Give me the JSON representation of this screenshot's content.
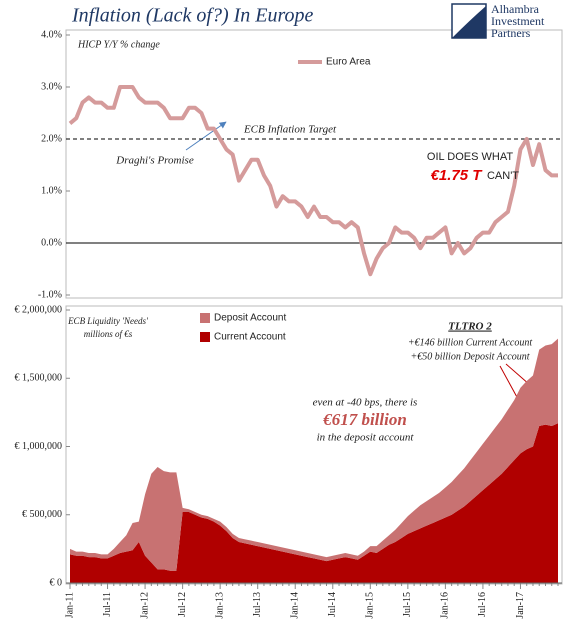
{
  "logo_text": [
    "Alhambra",
    "Investment",
    "Partners"
  ],
  "chart_data": [
    {
      "type": "line",
      "title": "Inflation (Lack of?) In Europe",
      "subtitle": "HICP Y/Y % change",
      "ylim": [
        -1,
        4
      ],
      "yticks": [
        {
          "value": -1,
          "label": "-1.0%"
        },
        {
          "value": 0,
          "label": "0.0%"
        },
        {
          "value": 1,
          "label": "1.0%"
        },
        {
          "value": 2,
          "label": "2.0%"
        },
        {
          "value": 3,
          "label": "3.0%"
        },
        {
          "value": 4,
          "label": "4.0%"
        }
      ],
      "grid": false,
      "legend": "top",
      "reference_lines": [
        {
          "value": 2,
          "label": "ECB Inflation Target"
        }
      ],
      "annotations": [
        "Draghi's Promise",
        "OIL DOES WHAT",
        "€1.75 T",
        "CAN'T"
      ],
      "series": [
        {
          "name": "Euro Area",
          "color": "#d59b9b",
          "values": [
            2.3,
            2.4,
            2.7,
            2.8,
            2.7,
            2.7,
            2.6,
            2.6,
            3.0,
            3.0,
            3.0,
            2.8,
            2.7,
            2.7,
            2.7,
            2.6,
            2.4,
            2.4,
            2.4,
            2.6,
            2.6,
            2.5,
            2.2,
            2.2,
            2.0,
            1.8,
            1.7,
            1.2,
            1.4,
            1.6,
            1.6,
            1.3,
            1.1,
            0.7,
            0.9,
            0.8,
            0.8,
            0.7,
            0.5,
            0.7,
            0.5,
            0.5,
            0.4,
            0.4,
            0.3,
            0.4,
            0.3,
            -0.2,
            -0.6,
            -0.3,
            -0.1,
            0.0,
            0.3,
            0.2,
            0.2,
            0.1,
            -0.1,
            0.1,
            0.1,
            0.2,
            0.3,
            -0.2,
            0.0,
            -0.2,
            -0.1,
            0.1,
            0.2,
            0.2,
            0.4,
            0.5,
            0.6,
            1.1,
            1.8,
            2.0,
            1.5,
            1.9,
            1.4,
            1.3,
            1.3
          ]
        }
      ]
    },
    {
      "type": "stacked_area",
      "categories": [
        "Jan-11",
        null,
        null,
        null,
        null,
        null,
        "Jul-11",
        null,
        null,
        null,
        null,
        null,
        "Jan-12",
        null,
        null,
        null,
        null,
        null,
        "Jul-12",
        null,
        null,
        null,
        null,
        null,
        "Jan-13",
        null,
        null,
        null,
        null,
        null,
        "Jul-13",
        null,
        null,
        null,
        null,
        null,
        "Jan-14",
        null,
        null,
        null,
        null,
        null,
        "Jul-14",
        null,
        null,
        null,
        null,
        null,
        "Jan-15",
        null,
        null,
        null,
        null,
        null,
        "Jul-15",
        null,
        null,
        null,
        null,
        null,
        "Jan-16",
        null,
        null,
        null,
        null,
        null,
        "Jul-16",
        null,
        null,
        null,
        null,
        null,
        "Jan-17",
        null,
        null,
        null,
        null,
        null,
        null
      ],
      "ylim": [
        0,
        2000000
      ],
      "yticks": [
        {
          "value": 0,
          "label": "€ 0"
        },
        {
          "value": 500000,
          "label": "€ 500,000"
        },
        {
          "value": 1000000,
          "label": "€ 1,000,000"
        },
        {
          "value": 1500000,
          "label": "€ 1,500,000"
        },
        {
          "value": 2000000,
          "label": "€ 2,000,000"
        }
      ],
      "grid": false,
      "legend": "top-left",
      "annotations": [
        "ECB Liquidity 'Needs'",
        "millions of €s",
        "TLTRO 2",
        "+€146 billion Current Account",
        "+€50 billion Deposit Account",
        "even at -40 bps, there is",
        "€617 billion",
        "in the deposit account"
      ],
      "series": [
        {
          "name": "Current Account",
          "color": "#b00000",
          "values": [
            210000,
            200000,
            200000,
            190000,
            190000,
            180000,
            180000,
            200000,
            220000,
            230000,
            240000,
            300000,
            200000,
            150000,
            100000,
            100000,
            90000,
            90000,
            520000,
            520000,
            500000,
            480000,
            470000,
            450000,
            420000,
            380000,
            330000,
            300000,
            290000,
            280000,
            270000,
            260000,
            250000,
            240000,
            230000,
            220000,
            210000,
            200000,
            190000,
            180000,
            170000,
            160000,
            170000,
            180000,
            190000,
            180000,
            170000,
            200000,
            230000,
            220000,
            250000,
            280000,
            300000,
            330000,
            360000,
            380000,
            400000,
            420000,
            440000,
            460000,
            480000,
            500000,
            530000,
            560000,
            600000,
            640000,
            680000,
            720000,
            760000,
            800000,
            850000,
            900000,
            950000,
            980000,
            1000000,
            1150000,
            1160000,
            1150000,
            1170000
          ]
        },
        {
          "name": "Deposit Account",
          "color": "#c87272",
          "values": [
            40000,
            30000,
            30000,
            30000,
            30000,
            30000,
            30000,
            50000,
            80000,
            120000,
            200000,
            150000,
            450000,
            650000,
            750000,
            720000,
            720000,
            720000,
            30000,
            20000,
            20000,
            20000,
            20000,
            20000,
            30000,
            30000,
            30000,
            30000,
            30000,
            30000,
            30000,
            30000,
            30000,
            30000,
            30000,
            30000,
            30000,
            30000,
            30000,
            30000,
            30000,
            30000,
            30000,
            30000,
            30000,
            30000,
            30000,
            30000,
            40000,
            50000,
            60000,
            70000,
            90000,
            110000,
            130000,
            150000,
            170000,
            180000,
            190000,
            200000,
            220000,
            240000,
            260000,
            280000,
            300000,
            320000,
            340000,
            360000,
            380000,
            400000,
            420000,
            440000,
            480000,
            500000,
            520000,
            560000,
            580000,
            600000,
            620000
          ]
        }
      ]
    }
  ]
}
